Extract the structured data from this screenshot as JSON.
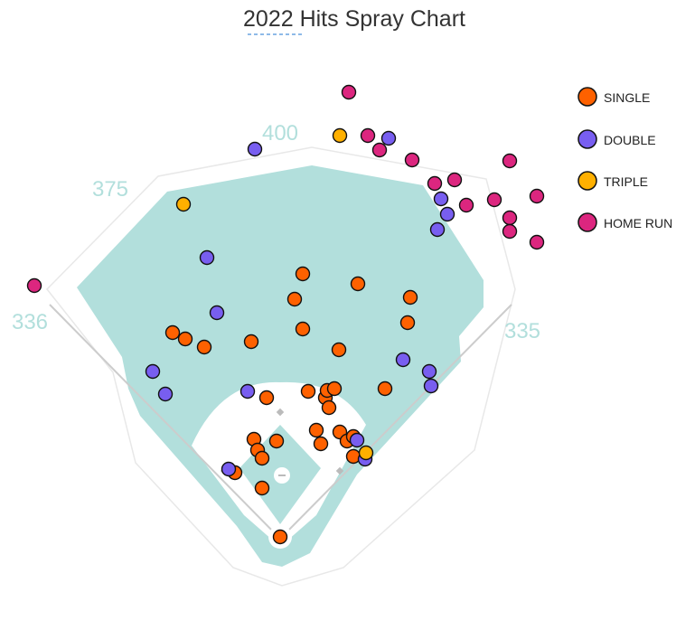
{
  "chart_data": {
    "type": "scatter",
    "title": "2022 Hits Spray Chart",
    "field_distances": [
      "336",
      "375",
      "400",
      "335"
    ],
    "legend_placement": "top-right",
    "series": [
      {
        "name": "SINGLE",
        "color": "#fe6100",
        "points": [
          [
            335,
            303
          ],
          [
            396,
            314
          ],
          [
            454,
            329
          ],
          [
            326,
            331
          ],
          [
            451,
            357
          ],
          [
            191,
            368
          ],
          [
            205,
            375
          ],
          [
            226,
            384
          ],
          [
            278,
            378
          ],
          [
            335,
            364
          ],
          [
            375,
            387
          ],
          [
            426,
            430
          ],
          [
            341,
            433
          ],
          [
            295,
            440
          ],
          [
            360,
            440
          ],
          [
            362,
            432
          ],
          [
            370,
            430
          ],
          [
            364,
            451
          ],
          [
            350,
            476
          ],
          [
            355,
            491
          ],
          [
            376,
            478
          ],
          [
            384,
            488
          ],
          [
            391,
            483
          ],
          [
            281,
            486
          ],
          [
            306,
            488
          ],
          [
            285,
            498
          ],
          [
            290,
            507
          ],
          [
            391,
            505
          ],
          [
            260,
            523
          ],
          [
            290,
            540
          ],
          [
            310,
            594
          ]
        ]
      },
      {
        "name": "DOUBLE",
        "color": "#785ef0",
        "points": [
          [
            282,
            165
          ],
          [
            430,
            153
          ],
          [
            488,
            220
          ],
          [
            495,
            237
          ],
          [
            484,
            254
          ],
          [
            229,
            285
          ],
          [
            240,
            346
          ],
          [
            446,
            398
          ],
          [
            475,
            411
          ],
          [
            477,
            427
          ],
          [
            169,
            411
          ],
          [
            183,
            436
          ],
          [
            274,
            433
          ],
          [
            395,
            487
          ],
          [
            404,
            508
          ],
          [
            253,
            519
          ]
        ]
      },
      {
        "name": "TRIPLE",
        "color": "#ffb000",
        "points": [
          [
            203,
            226
          ],
          [
            376,
            150
          ],
          [
            405,
            501
          ]
        ]
      },
      {
        "name": "HOME RUN",
        "color": "#dc267f",
        "points": [
          [
            386,
            102
          ],
          [
            407,
            150
          ],
          [
            420,
            166
          ],
          [
            456,
            177
          ],
          [
            481,
            203
          ],
          [
            503,
            199
          ],
          [
            516,
            227
          ],
          [
            547,
            221
          ],
          [
            564,
            178
          ],
          [
            594,
            217
          ],
          [
            564,
            241
          ],
          [
            564,
            256
          ],
          [
            594,
            268
          ],
          [
            38,
            316
          ]
        ]
      }
    ]
  }
}
